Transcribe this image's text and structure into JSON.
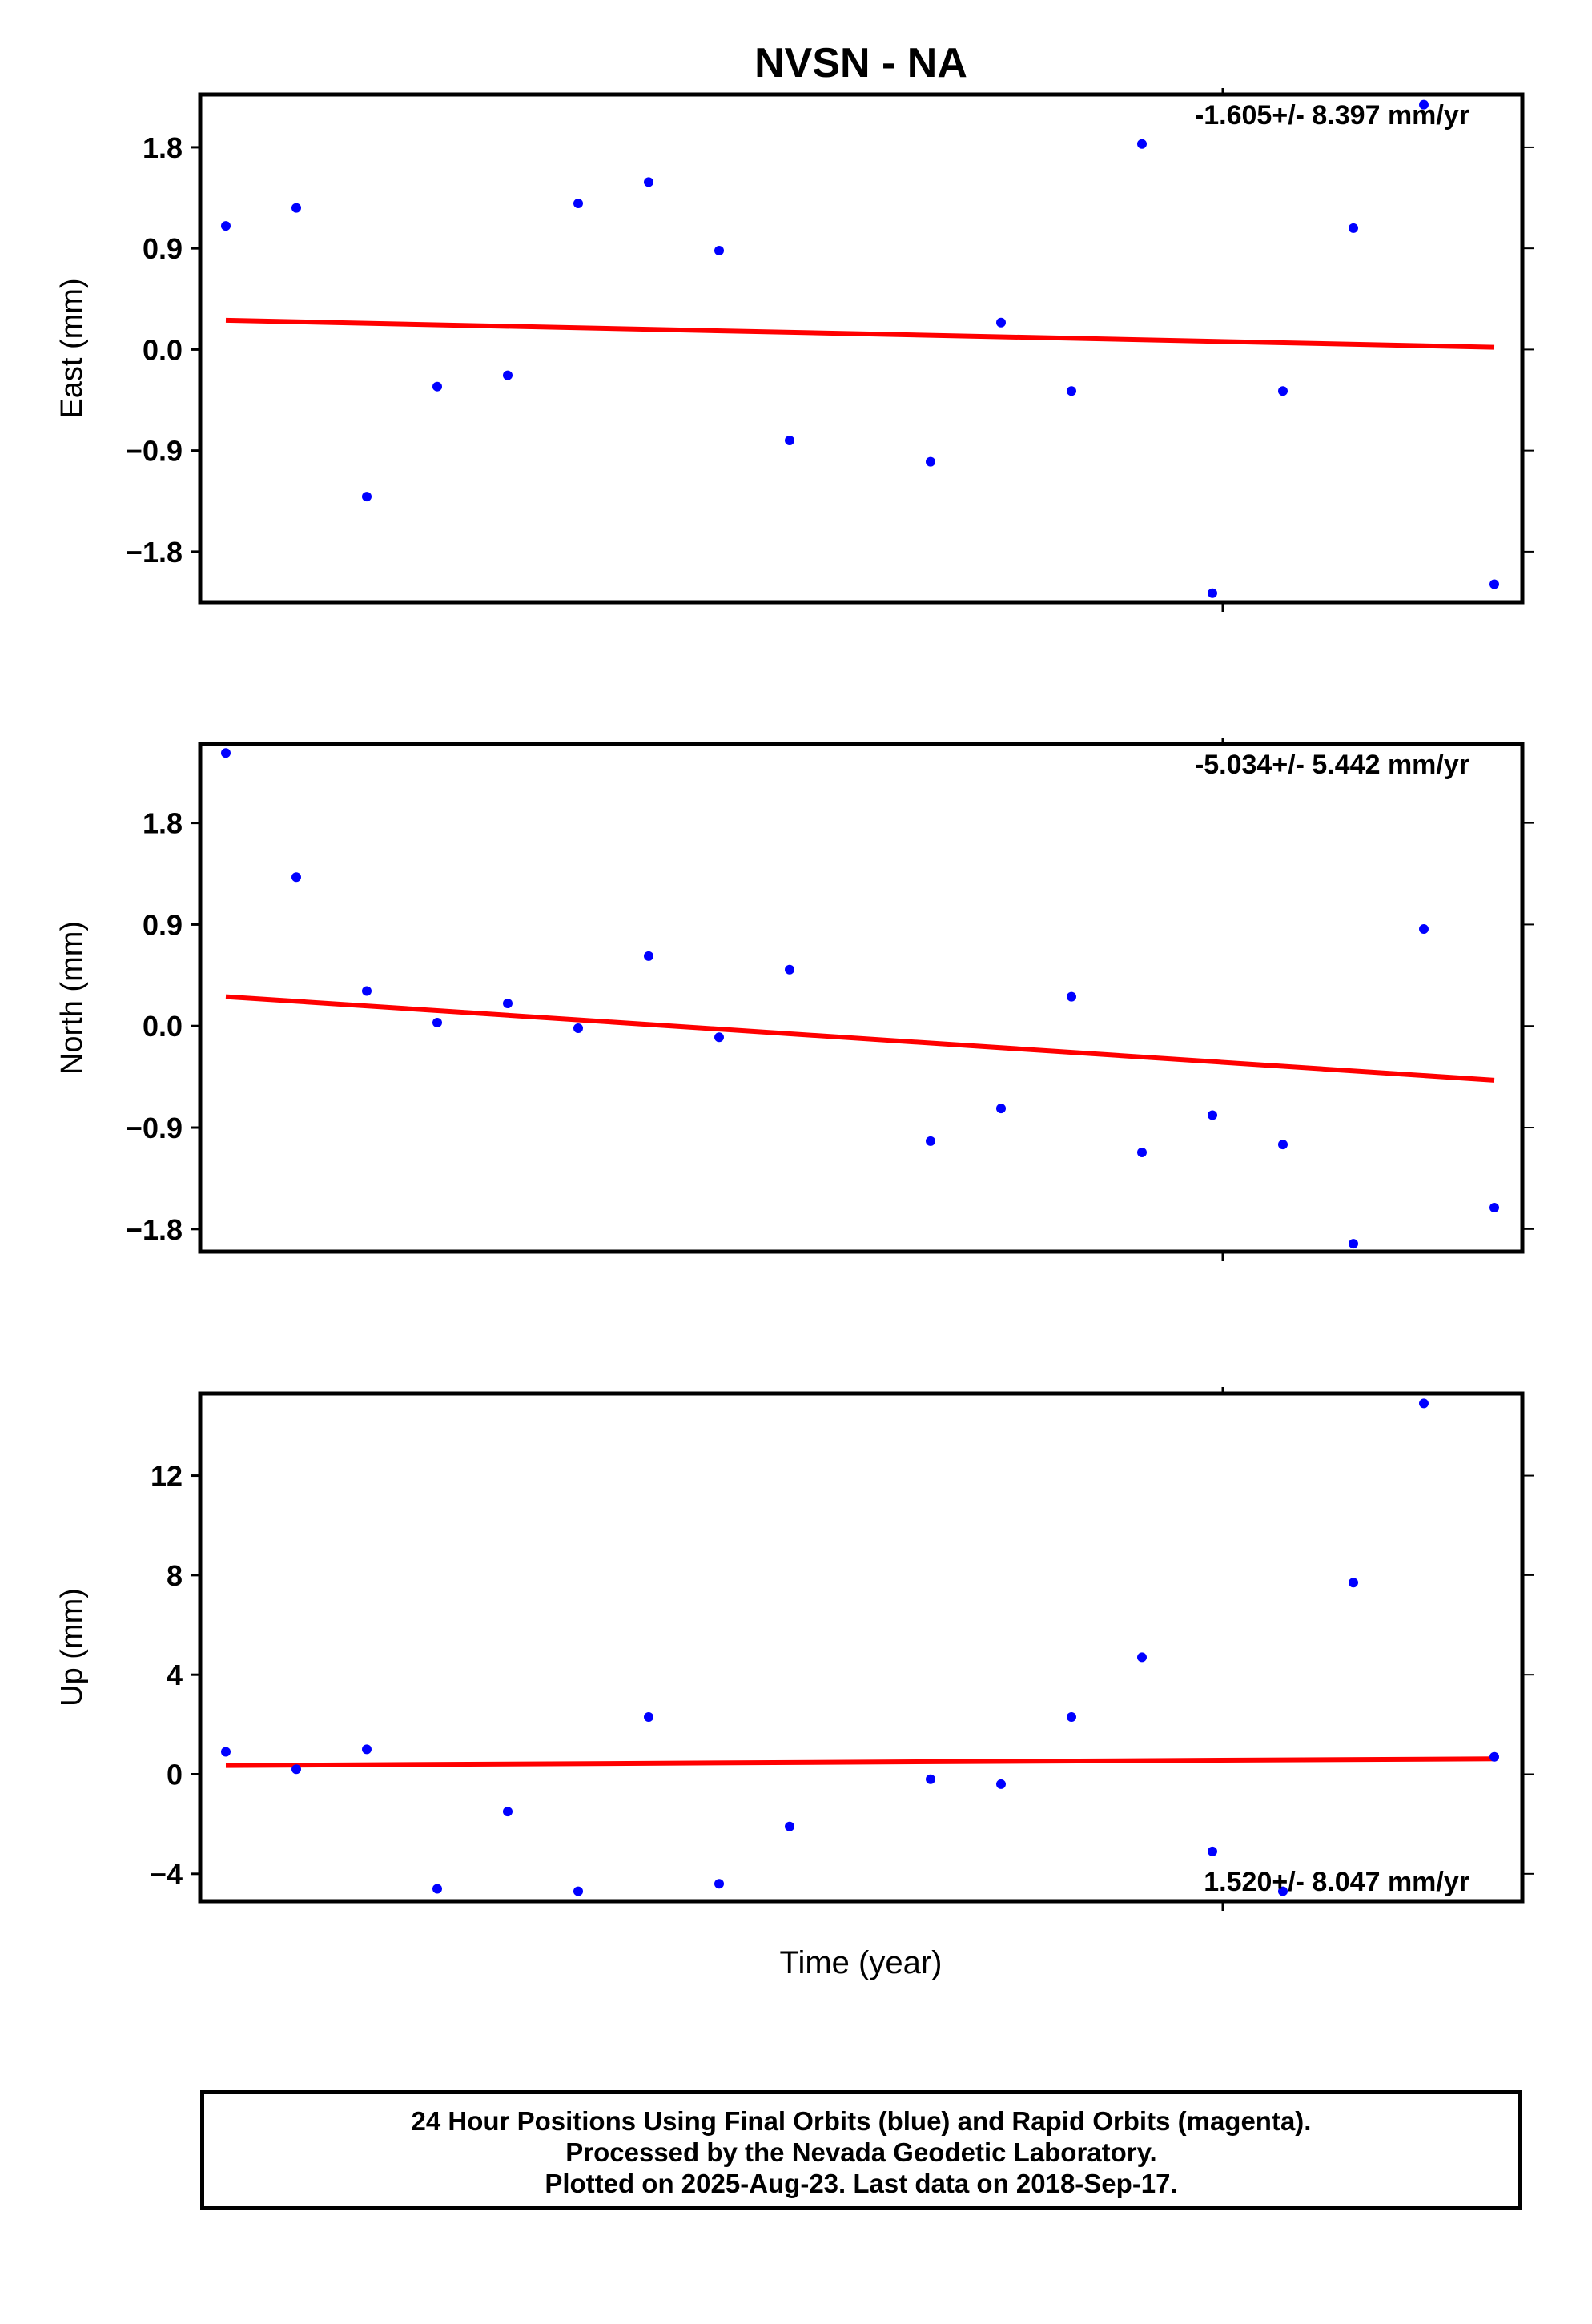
{
  "chart_data": {
    "title": "NVSN - NA",
    "xlabel": "Time (year)",
    "footer_lines": [
      "24 Hour Positions Using Final Orbits (blue) and Rapid Orbits (magenta).",
      "Processed by the Nevada Geodetic Laboratory.",
      "Plotted on 2025-Aug-23. Last data on 2018-Sep-17."
    ],
    "colors": {
      "points": "#0000ff",
      "trend": "#ff0000",
      "axes": "#000000"
    },
    "x_index": [
      0,
      1,
      2,
      3,
      4,
      5,
      6,
      7,
      8,
      9,
      10,
      11,
      12,
      13,
      14,
      15,
      16,
      17,
      18
    ],
    "panels": [
      {
        "type": "scatter",
        "ylabel": "East (mm)",
        "rate": "-1.605+/- 8.397 mm/yr",
        "rate_position": "top-right",
        "ylim": [
          -2.25,
          2.27
        ],
        "yticks": [
          1.8,
          0.9,
          0.0,
          -0.9,
          -1.8
        ],
        "ytick_labels": [
          "1.8",
          "0.9",
          "0.0",
          "−0.9",
          "−1.8"
        ],
        "values": [
          1.1,
          1.26,
          -1.31,
          -0.33,
          -0.23,
          1.3,
          1.49,
          0.88,
          -0.81,
          null,
          -1.0,
          0.24,
          -0.37,
          1.83,
          -2.17,
          -0.37,
          1.08,
          2.18,
          -2.09
        ],
        "trend": [
          0.26,
          0.02
        ]
      },
      {
        "type": "scatter",
        "ylabel": "North (mm)",
        "rate": "-5.034+/- 5.442 mm/yr",
        "rate_position": "top-right",
        "ylim": [
          -2.0,
          2.5
        ],
        "yticks": [
          1.8,
          0.9,
          0.0,
          -0.9,
          -1.8
        ],
        "ytick_labels": [
          "1.8",
          "0.9",
          "0.0",
          "−0.9",
          "−1.8"
        ],
        "values": [
          2.42,
          1.32,
          0.31,
          0.03,
          0.2,
          -0.02,
          0.62,
          -0.1,
          0.5,
          null,
          -1.02,
          -0.73,
          0.26,
          -1.12,
          -0.79,
          -1.05,
          -1.93,
          0.86,
          -1.61
        ],
        "trend": [
          0.26,
          -0.48
        ]
      },
      {
        "type": "scatter",
        "ylabel": "Up (mm)",
        "rate": "1.520+/- 8.047 mm/yr",
        "rate_position": "bottom-right",
        "ylim": [
          -5.1,
          15.3
        ],
        "yticks": [
          12,
          8,
          4,
          0,
          -4
        ],
        "ytick_labels": [
          "12",
          "8",
          "4",
          "0",
          "−4"
        ],
        "values": [
          0.9,
          0.2,
          1.0,
          -4.6,
          -1.5,
          -4.7,
          2.3,
          -4.4,
          -2.1,
          null,
          -0.2,
          -0.4,
          2.3,
          4.7,
          -3.1,
          -4.7,
          7.7,
          14.9,
          0.7
        ],
        "trend": [
          0.35,
          0.62
        ]
      }
    ]
  }
}
